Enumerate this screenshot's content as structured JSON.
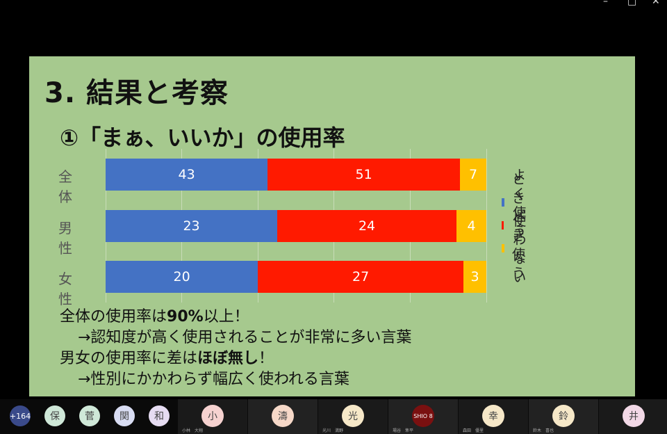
{
  "slide": {
    "title": "3. 結果と考察",
    "subtitle": "①「まぁ、いいか」の使用率",
    "chart_data": {
      "type": "bar",
      "stacked": true,
      "orientation": "horizontal",
      "categories": [
        "全体",
        "男性",
        "女性"
      ],
      "series": [
        {
          "name": "よく使う",
          "color": "#4472c4",
          "values": [
            43,
            23,
            20
          ]
        },
        {
          "name": "ときどき使う",
          "color": "#ff1a00",
          "values": [
            51,
            24,
            27
          ]
        },
        {
          "name": "使わない",
          "color": "#ffc000",
          "values": [
            7,
            4,
            3
          ]
        }
      ],
      "legend_position": "right",
      "grid": true
    },
    "lines": [
      {
        "parts": [
          {
            "text": "全体の使用率は"
          },
          {
            "text": "90%",
            "bold": true
          },
          {
            "text": "以上！"
          }
        ]
      },
      {
        "parts": [
          {
            "text": "→認知度が高く使用されることが非常に多い言葉"
          }
        ],
        "indent": true
      },
      {
        "parts": [
          {
            "text": "男女の使用率に差は"
          },
          {
            "text": "ほぼ無し",
            "bold": true
          },
          {
            "text": "！"
          }
        ]
      },
      {
        "parts": [
          {
            "text": "→性別にかかわらず幅広く使われる言葉"
          }
        ],
        "indent": true
      }
    ]
  },
  "window_controls": [
    "–",
    "□",
    "✕"
  ],
  "participants_more": "+164",
  "small_avatars": [
    {
      "char": "保",
      "color": "#cfe8d8"
    },
    {
      "char": "菅",
      "color": "#cfe8d8"
    },
    {
      "char": "関",
      "color": "#d8dcf2"
    },
    {
      "char": "和",
      "color": "#e6dcf2"
    }
  ],
  "tiles": [
    {
      "char": "小",
      "color": "#f6d2d0",
      "name": "小林　大翔"
    },
    {
      "char": "濤",
      "color": "#f6d8c8",
      "name": ""
    },
    {
      "char": "光",
      "color": "#f6e8c8",
      "name": "光川　満野"
    },
    {
      "char": "SHIO 8",
      "color": "#7a1010",
      "name": "場谷　隼平"
    },
    {
      "char": "幸",
      "color": "#f6e8c8",
      "name": "森田　優里"
    },
    {
      "char": "鈴",
      "color": "#f6e8c8",
      "name": "鈴木　喜也"
    },
    {
      "char": "井",
      "color": "#f2d8e6",
      "name": ""
    }
  ]
}
